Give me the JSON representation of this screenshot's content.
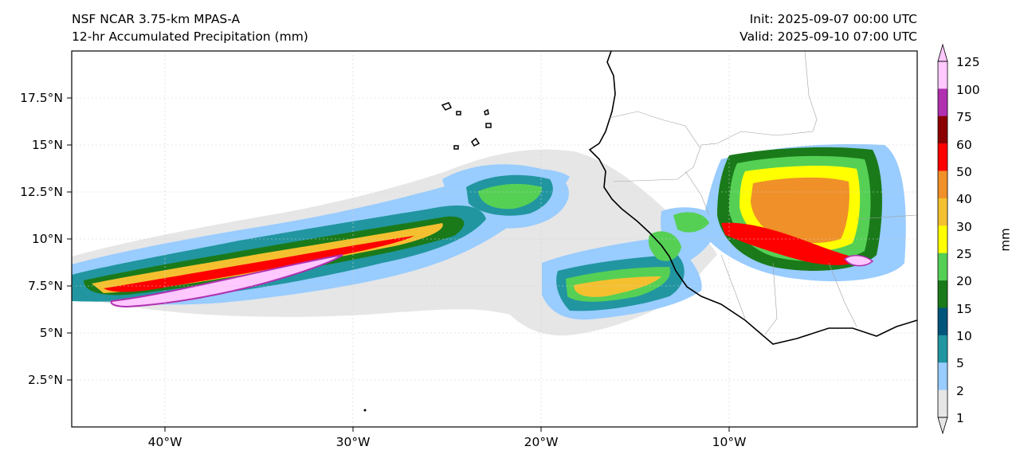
{
  "header": {
    "model": "NSF NCAR 3.75-km MPAS-A",
    "field": "12-hr Accumulated Precipitation (mm)",
    "init": "Init: 2025-09-07 00:00 UTC",
    "valid": "Valid: 2025-09-10 07:00 UTC"
  },
  "map": {
    "lat_ticks": [
      "17.5°N",
      "15°N",
      "12.5°N",
      "10°N",
      "7.5°N",
      "5°N",
      "2.5°N"
    ],
    "lon_ticks": [
      "40°W",
      "30°W",
      "20°W",
      "10°W"
    ]
  },
  "colorbar": {
    "unit": "mm",
    "levels": [
      "1",
      "2",
      "5",
      "10",
      "15",
      "20",
      "25",
      "30",
      "40",
      "50",
      "60",
      "75",
      "100",
      "125"
    ],
    "colors": [
      "#e6e6e6",
      "#99ccff",
      "#2196a0",
      "#00557a",
      "#1a7a1a",
      "#55d055",
      "#ffff00",
      "#f5c030",
      "#f09028",
      "#ff0000",
      "#8b0000",
      "#b030b0",
      "#ffc8ff"
    ]
  }
}
